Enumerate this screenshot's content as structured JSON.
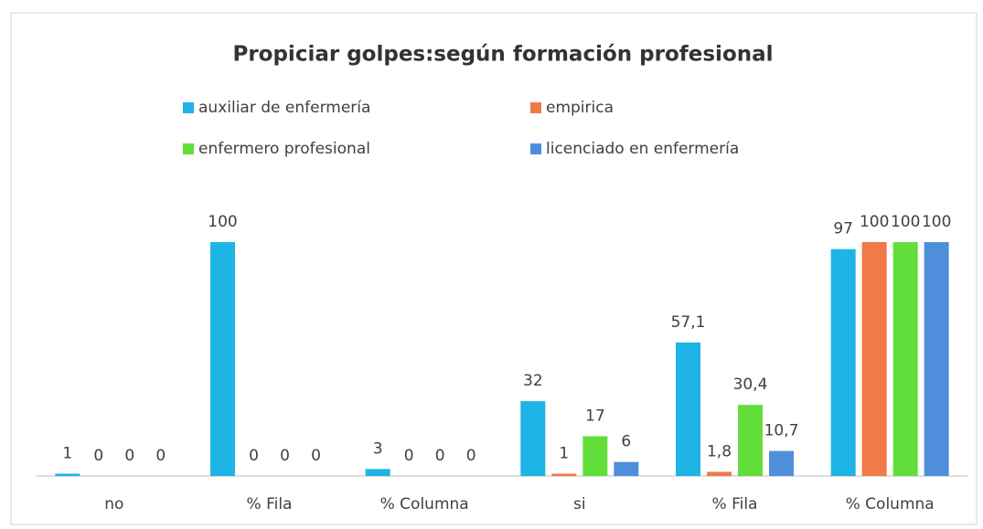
{
  "chart_data": {
    "type": "bar",
    "title": "Propiciar golpes:según formación  profesional",
    "categories": [
      "no",
      "% Fila",
      "% Columna",
      "si",
      "% Fila",
      "% Columna"
    ],
    "series": [
      {
        "name": "auxiliar de enfermería",
        "color": "#1eb4e6",
        "values": [
          1,
          100,
          3,
          32,
          57.1,
          97
        ],
        "value_labels": [
          "1",
          "100",
          "3",
          "32",
          "57,1",
          "97"
        ]
      },
      {
        "name": "empirica",
        "color": "#f07a48",
        "values": [
          0,
          0,
          0,
          1,
          1.8,
          100
        ],
        "value_labels": [
          "0",
          "0",
          "0",
          "1",
          "1,8",
          "100"
        ]
      },
      {
        "name": "enfermero profesional",
        "color": "#62de3a",
        "values": [
          0,
          0,
          0,
          17,
          30.4,
          100
        ],
        "value_labels": [
          "0",
          "0",
          "0",
          "17",
          "30,4",
          "100"
        ]
      },
      {
        "name": "licenciado en enfermería",
        "color": "#4e8edb",
        "values": [
          0,
          0,
          0,
          6,
          10.7,
          100
        ],
        "value_labels": [
          "0",
          "0",
          "0",
          "6",
          "10,7",
          "100"
        ]
      }
    ],
    "ylim": [
      0,
      100
    ]
  }
}
